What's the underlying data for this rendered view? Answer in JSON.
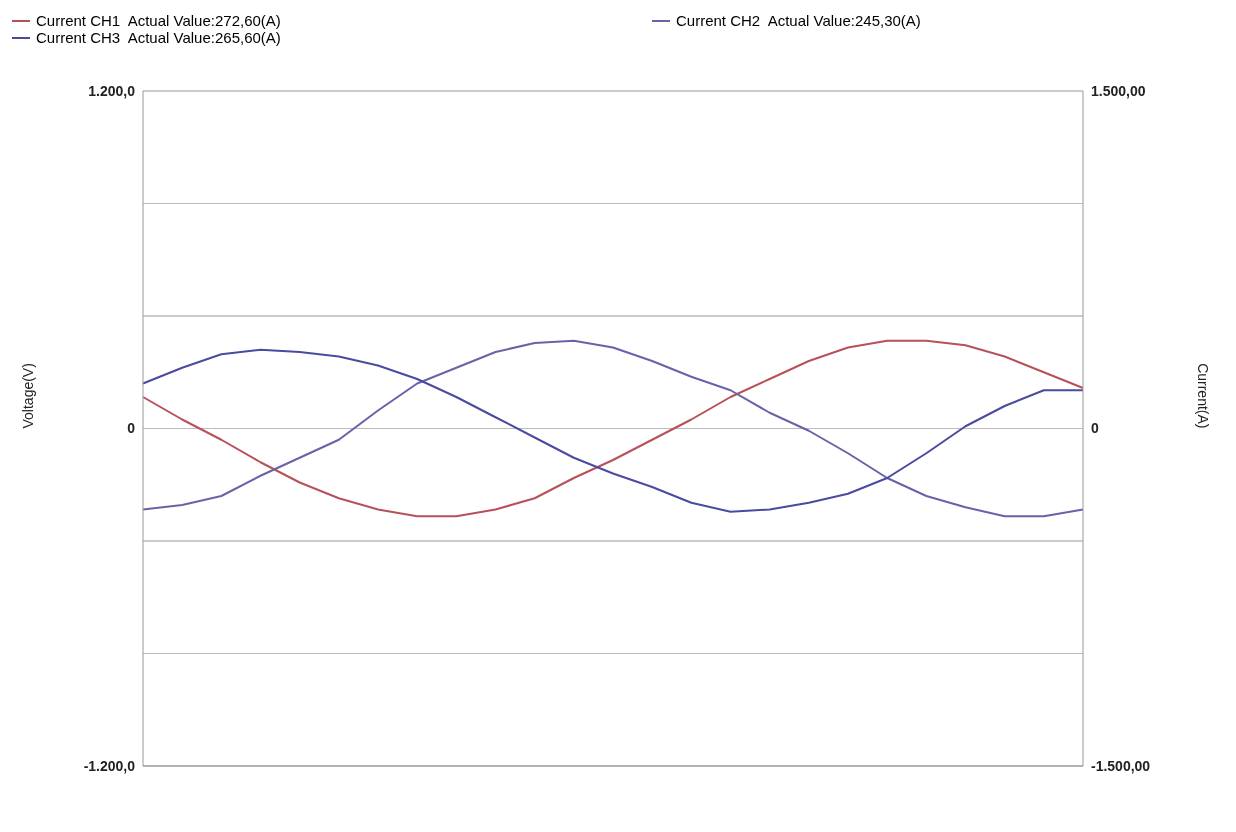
{
  "chart_data": {
    "type": "line",
    "ylabel": "Voltage(V)",
    "y2label": "Current(A)",
    "categories": [
      null,
      null,
      null,
      null,
      null,
      null,
      null,
      null,
      null,
      null,
      null,
      null,
      null,
      null,
      null,
      null,
      null,
      null,
      null,
      null,
      null,
      null,
      null,
      null,
      null
    ],
    "series": [
      {
        "name": "Current CH1  Actual Value:272,60(A)",
        "color": "#b8505a",
        "axis": "y2",
        "values": [
          140,
          40,
          -50,
          -150,
          -240,
          -310,
          -360,
          -390,
          -390,
          -360,
          -310,
          -220,
          -140,
          -50,
          40,
          140,
          220,
          300,
          360,
          390,
          390,
          370,
          320,
          250,
          180
        ]
      },
      {
        "name": "Current CH2  Actual Value:245,30(A)",
        "color": "#6a62a8",
        "axis": "y2",
        "values": [
          -360,
          -340,
          -300,
          -210,
          -130,
          -50,
          80,
          200,
          270,
          340,
          380,
          390,
          360,
          300,
          230,
          170,
          70,
          -10,
          -110,
          -220,
          -300,
          -350,
          -390,
          -390,
          -360
        ]
      },
      {
        "name": "Current CH3  Actual Value:265,60(A)",
        "color": "#4a4aa0",
        "axis": "y2",
        "values": [
          200,
          270,
          330,
          350,
          340,
          320,
          280,
          220,
          140,
          50,
          -40,
          -130,
          -200,
          -260,
          -330,
          -370,
          -360,
          -330,
          -290,
          -220,
          -110,
          10,
          100,
          170,
          170
        ]
      }
    ],
    "ylim": [
      -1200,
      1200
    ],
    "yticks": [
      {
        "value": -1200,
        "label": "-1.200,0"
      },
      {
        "value": -800,
        "label": null
      },
      {
        "value": -400,
        "label": null
      },
      0,
      {
        "value": 400,
        "label": null
      },
      {
        "value": 800,
        "label": null
      },
      {
        "value": 1200,
        "label": "1.200,0"
      }
    ],
    "y2lim": [
      -1500,
      1500
    ],
    "y2ticks": [
      {
        "value": -1500,
        "label": "-1.500,00"
      },
      {
        "value": -1000,
        "label": null
      },
      {
        "value": -500,
        "label": null
      },
      0,
      {
        "value": 500,
        "label": null
      },
      {
        "value": 1000,
        "label": null
      },
      {
        "value": 1500,
        "label": "1.500,00"
      }
    ],
    "grid": "y",
    "legend": "top left",
    "tick_labels": "y",
    "marker": "none",
    "line_style": "solid"
  }
}
